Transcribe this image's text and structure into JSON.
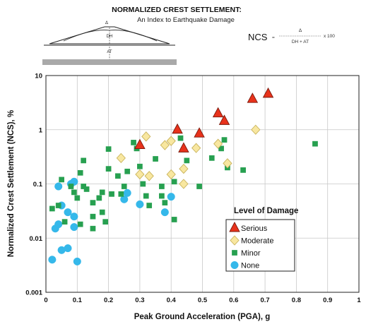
{
  "header": {
    "title": "NORMALIZED CREST SETTLEMENT:",
    "subtitle": "An Index to Earthquake Damage",
    "dam_delta": "Δ",
    "dam_dh": "DH",
    "dam_at": "AT",
    "eq_lhs": "NCS",
    "eq_equals": "=",
    "eq_num": "Δ",
    "eq_den": "DH + AT",
    "eq_mult": "x 100"
  },
  "colors": {
    "serious": "#e8321b",
    "moderate": "#f8e7a0",
    "minor": "#27a050",
    "none": "#35b8ea",
    "grid": "#c8c8c8"
  },
  "chart_data": {
    "type": "scatter",
    "title": "",
    "xlabel": "Peak Ground Acceleration (PGA), g",
    "ylabel": "Normalized Crest Settlement (NCS), %",
    "xlim": [
      0,
      1
    ],
    "ylim": [
      0.001,
      10
    ],
    "y_scale": "log",
    "grid": true,
    "x_ticks": [
      "0",
      "0.1",
      "0.2",
      "0.3",
      "0.4",
      "0.5",
      "0.6",
      "0.7",
      "0.8",
      "0.9",
      "1"
    ],
    "y_ticks": [
      "0.001",
      "0.01",
      "0.1",
      "1",
      "10"
    ],
    "legend": {
      "title": "Level of Damage",
      "position": "lower-right"
    },
    "series": [
      {
        "name": "Serious",
        "marker": "triangle",
        "points": [
          [
            0.3,
            0.52
          ],
          [
            0.42,
            1.0
          ],
          [
            0.44,
            0.45
          ],
          [
            0.49,
            0.85
          ],
          [
            0.55,
            2.0
          ],
          [
            0.57,
            1.45
          ],
          [
            0.66,
            3.7
          ],
          [
            0.71,
            4.6
          ]
        ]
      },
      {
        "name": "Moderate",
        "marker": "diamond",
        "points": [
          [
            0.24,
            0.3
          ],
          [
            0.3,
            0.15
          ],
          [
            0.32,
            0.75
          ],
          [
            0.33,
            0.14
          ],
          [
            0.38,
            0.52
          ],
          [
            0.4,
            0.62
          ],
          [
            0.4,
            0.15
          ],
          [
            0.44,
            0.19
          ],
          [
            0.44,
            0.1
          ],
          [
            0.48,
            0.46
          ],
          [
            0.55,
            0.55
          ],
          [
            0.58,
            0.24
          ],
          [
            0.67,
            1.0
          ]
        ]
      },
      {
        "name": "Minor",
        "marker": "square",
        "points": [
          [
            0.02,
            0.035
          ],
          [
            0.04,
            0.04
          ],
          [
            0.05,
            0.12
          ],
          [
            0.06,
            0.02
          ],
          [
            0.08,
            0.09
          ],
          [
            0.09,
            0.07
          ],
          [
            0.1,
            0.055
          ],
          [
            0.11,
            0.16
          ],
          [
            0.11,
            0.018
          ],
          [
            0.12,
            0.09
          ],
          [
            0.12,
            0.27
          ],
          [
            0.13,
            0.08
          ],
          [
            0.15,
            0.045
          ],
          [
            0.15,
            0.025
          ],
          [
            0.15,
            0.015
          ],
          [
            0.17,
            0.055
          ],
          [
            0.18,
            0.03
          ],
          [
            0.18,
            0.07
          ],
          [
            0.19,
            0.02
          ],
          [
            0.2,
            0.44
          ],
          [
            0.2,
            0.19
          ],
          [
            0.21,
            0.065
          ],
          [
            0.23,
            0.14
          ],
          [
            0.24,
            0.065
          ],
          [
            0.25,
            0.09
          ],
          [
            0.26,
            0.17
          ],
          [
            0.28,
            0.58
          ],
          [
            0.29,
            0.45
          ],
          [
            0.3,
            0.21
          ],
          [
            0.31,
            0.1
          ],
          [
            0.32,
            0.06
          ],
          [
            0.33,
            0.04
          ],
          [
            0.35,
            0.29
          ],
          [
            0.37,
            0.09
          ],
          [
            0.37,
            0.06
          ],
          [
            0.38,
            0.045
          ],
          [
            0.41,
            0.11
          ],
          [
            0.41,
            0.022
          ],
          [
            0.43,
            0.7
          ],
          [
            0.45,
            0.27
          ],
          [
            0.49,
            0.09
          ],
          [
            0.53,
            0.3
          ],
          [
            0.56,
            0.45
          ],
          [
            0.57,
            0.65
          ],
          [
            0.58,
            0.2
          ],
          [
            0.63,
            0.18
          ],
          [
            0.86,
            0.55
          ]
        ]
      },
      {
        "name": "None",
        "marker": "circle",
        "points": [
          [
            0.02,
            0.004
          ],
          [
            0.03,
            0.015
          ],
          [
            0.04,
            0.018
          ],
          [
            0.04,
            0.09
          ],
          [
            0.05,
            0.006
          ],
          [
            0.05,
            0.04
          ],
          [
            0.07,
            0.0065
          ],
          [
            0.07,
            0.03
          ],
          [
            0.08,
            0.1
          ],
          [
            0.09,
            0.11
          ],
          [
            0.09,
            0.016
          ],
          [
            0.09,
            0.025
          ],
          [
            0.1,
            0.0037
          ],
          [
            0.25,
            0.052
          ],
          [
            0.26,
            0.068
          ],
          [
            0.3,
            0.042
          ],
          [
            0.38,
            0.03
          ],
          [
            0.4,
            0.058
          ]
        ]
      }
    ]
  }
}
